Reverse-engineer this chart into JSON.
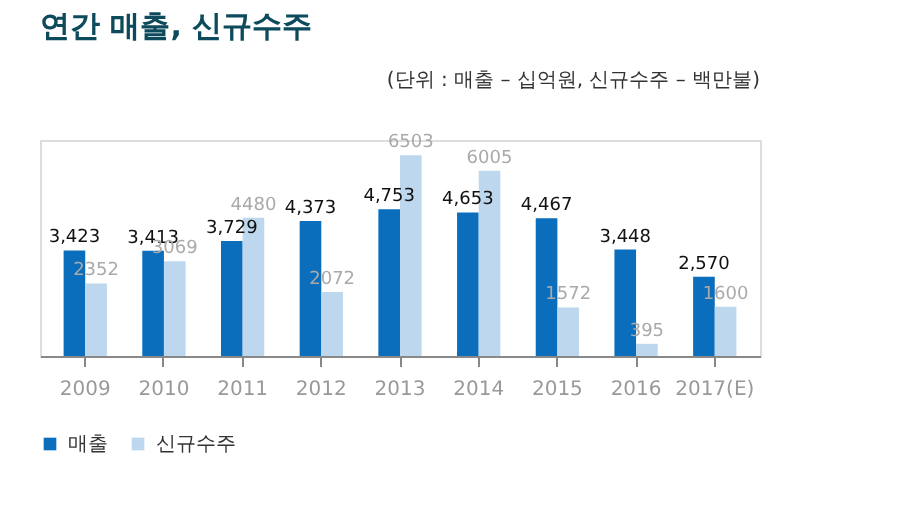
{
  "chart_data": {
    "type": "bar",
    "title": "연간 매출, 신규수주",
    "subtitle": "(단위 : 매출 – 십억원, 신규수주 – 백만불)",
    "categories": [
      "2009",
      "2010",
      "2011",
      "2012",
      "2013",
      "2014",
      "2015",
      "2016",
      "2017(E)"
    ],
    "series": [
      {
        "name": "매출",
        "color": "#0a6ebd",
        "values": [
          3423,
          3413,
          3729,
          4373,
          4753,
          4653,
          4467,
          3448,
          2570
        ],
        "value_labels": [
          "3,423",
          "3,413",
          "3,729",
          "4,373",
          "4,753",
          "4,653",
          "4,467",
          "3,448",
          "2,570"
        ]
      },
      {
        "name": "신규수주",
        "color": "#bcd7ee",
        "values": [
          2352,
          3069,
          4480,
          2072,
          6503,
          6005,
          1572,
          395,
          1600
        ],
        "value_labels": [
          "2352",
          "3069",
          "4480",
          "2072",
          "6503",
          "6005",
          "1572",
          "395",
          "1600"
        ]
      }
    ],
    "legend": "bottom",
    "grid": false
  }
}
